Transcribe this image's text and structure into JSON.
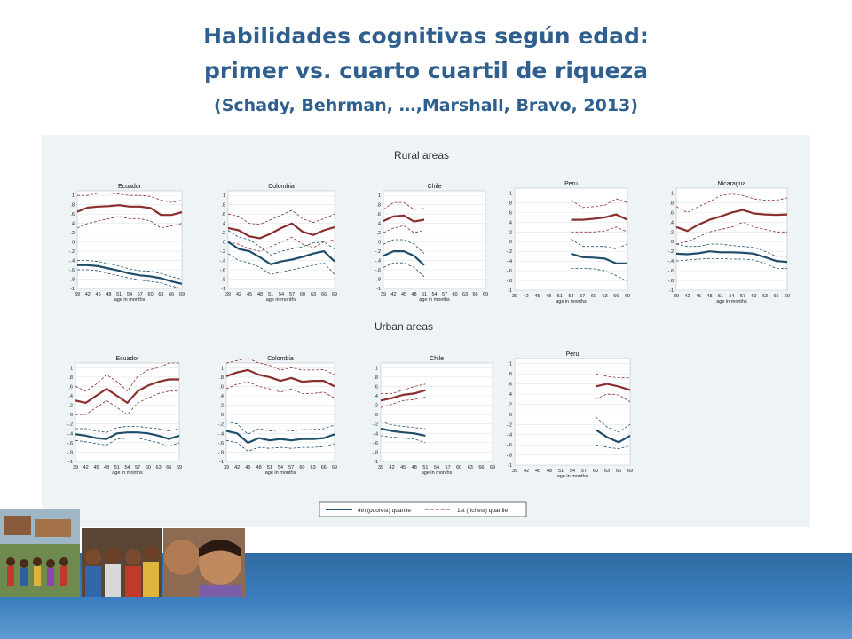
{
  "title": {
    "line1": "Habilidades cognitivas según edad:",
    "line2": "primer vs. cuarto cuartil de riqueza",
    "line3": "(Schady, Behrman, …,Marshall, Bravo, 2013)"
  },
  "colors": {
    "poorest": "#1f4e6b",
    "richest": "#8b2e2e",
    "panel_bg": "#eef3f6",
    "title": "#2e5f8e"
  },
  "photo_strip": {
    "icon": "photo-collage-icon"
  },
  "chart_data": {
    "type": "line",
    "section_titles": {
      "rural": "Rural areas",
      "urban": "Urban areas"
    },
    "xlabel": "age in months",
    "x_ticks": [
      39,
      42,
      45,
      48,
      51,
      54,
      57,
      60,
      63,
      66,
      69
    ],
    "y_ticks": [
      1,
      0.8,
      0.6,
      0.4,
      0.2,
      0,
      -0.2,
      -0.4,
      -0.6,
      -0.8,
      -1
    ],
    "y_tick_labels": [
      "1",
      ".8",
      ".6",
      ".4",
      ".2",
      "0",
      "-.2",
      "-.4",
      "-.6",
      "-.8",
      "-1"
    ],
    "x_tick_labels": [
      "39",
      "42",
      "45",
      "48",
      "51",
      "54",
      "57",
      "60",
      "63",
      "66",
      "69"
    ],
    "ylim": [
      -1,
      1.1
    ],
    "xlim": [
      39,
      69
    ],
    "legend": {
      "placement": "bottom",
      "poorest": "4th (poorest) quartile",
      "richest": "1st (richest) quartile"
    },
    "panels": [
      {
        "area": "rural",
        "country": "Ecuador",
        "x": [
          39,
          42,
          45,
          48,
          51,
          54,
          57,
          60,
          63,
          66,
          69
        ],
        "richest": [
          0.65,
          0.74,
          0.76,
          0.77,
          0.79,
          0.76,
          0.76,
          0.73,
          0.58,
          0.58,
          0.64
        ],
        "richest_ci": [
          [
            0.3,
            1.0
          ],
          [
            0.4,
            1.0
          ],
          [
            0.45,
            1.05
          ],
          [
            0.5,
            1.05
          ],
          [
            0.55,
            1.03
          ],
          [
            0.5,
            1.0
          ],
          [
            0.5,
            1.0
          ],
          [
            0.45,
            0.98
          ],
          [
            0.3,
            0.9
          ],
          [
            0.35,
            0.85
          ],
          [
            0.4,
            0.9
          ]
        ],
        "poorest": [
          -0.5,
          -0.5,
          -0.52,
          -0.57,
          -0.62,
          -0.68,
          -0.72,
          -0.74,
          -0.78,
          -0.85,
          -0.9
        ],
        "poorest_ci": [
          [
            -0.6,
            -0.4
          ],
          [
            -0.6,
            -0.4
          ],
          [
            -0.62,
            -0.42
          ],
          [
            -0.68,
            -0.47
          ],
          [
            -0.73,
            -0.52
          ],
          [
            -0.78,
            -0.58
          ],
          [
            -0.82,
            -0.62
          ],
          [
            -0.85,
            -0.63
          ],
          [
            -0.88,
            -0.68
          ],
          [
            -0.95,
            -0.75
          ],
          [
            -1.0,
            -0.8
          ]
        ]
      },
      {
        "area": "rural",
        "country": "Colombia",
        "x": [
          39,
          42,
          45,
          48,
          51,
          54,
          57,
          60,
          63,
          66,
          69
        ],
        "richest": [
          0.3,
          0.25,
          0.12,
          0.08,
          0.18,
          0.3,
          0.4,
          0.22,
          0.15,
          0.25,
          0.32
        ],
        "richest_ci": [
          [
            0.0,
            0.6
          ],
          [
            -0.05,
            0.55
          ],
          [
            -0.15,
            0.4
          ],
          [
            -0.2,
            0.38
          ],
          [
            -0.1,
            0.48
          ],
          [
            0.0,
            0.58
          ],
          [
            0.1,
            0.68
          ],
          [
            -0.05,
            0.5
          ],
          [
            -0.12,
            0.42
          ],
          [
            0.0,
            0.5
          ],
          [
            0.05,
            0.6
          ]
        ],
        "poorest": [
          0.0,
          -0.15,
          -0.2,
          -0.33,
          -0.48,
          -0.42,
          -0.38,
          -0.32,
          -0.25,
          -0.2,
          -0.42
        ],
        "poorest_ci": [
          [
            -0.25,
            0.25
          ],
          [
            -0.4,
            0.1
          ],
          [
            -0.45,
            0.05
          ],
          [
            -0.55,
            -0.1
          ],
          [
            -0.7,
            -0.28
          ],
          [
            -0.65,
            -0.2
          ],
          [
            -0.6,
            -0.15
          ],
          [
            -0.55,
            -0.1
          ],
          [
            -0.5,
            -0.02
          ],
          [
            -0.45,
            0.0
          ],
          [
            -0.7,
            -0.15
          ]
        ]
      },
      {
        "area": "rural",
        "country": "Chile",
        "x": [
          39,
          42,
          45,
          48,
          51
        ],
        "richest": [
          0.45,
          0.55,
          0.57,
          0.44,
          0.48
        ],
        "richest_ci": [
          [
            0.2,
            0.7
          ],
          [
            0.3,
            0.85
          ],
          [
            0.35,
            0.85
          ],
          [
            0.2,
            0.7
          ],
          [
            0.25,
            0.72
          ]
        ],
        "poorest": [
          -0.3,
          -0.2,
          -0.2,
          -0.3,
          -0.5
        ],
        "poorest_ci": [
          [
            -0.55,
            -0.05
          ],
          [
            -0.45,
            0.05
          ],
          [
            -0.45,
            0.05
          ],
          [
            -0.55,
            -0.05
          ],
          [
            -0.75,
            -0.25
          ]
        ]
      },
      {
        "area": "rural",
        "country": "Peru",
        "x": [
          54,
          57,
          60,
          63,
          66,
          69
        ],
        "richest": [
          0.45,
          0.45,
          0.47,
          0.5,
          0.56,
          0.45
        ],
        "richest_ci": [
          [
            0.2,
            0.85
          ],
          [
            0.2,
            0.7
          ],
          [
            0.2,
            0.72
          ],
          [
            0.22,
            0.75
          ],
          [
            0.3,
            0.88
          ],
          [
            0.2,
            0.8
          ]
        ],
        "poorest": [
          -0.25,
          -0.32,
          -0.33,
          -0.35,
          -0.45,
          -0.45
        ],
        "poorest_ci": [
          [
            0.05,
            -0.55
          ],
          [
            -0.1,
            -0.55
          ],
          [
            -0.1,
            -0.56
          ],
          [
            -0.1,
            -0.6
          ],
          [
            -0.15,
            -0.7
          ],
          [
            -0.05,
            -0.82
          ]
        ]
      },
      {
        "area": "rural",
        "country": "Nicaragua",
        "x": [
          39,
          42,
          45,
          48,
          51,
          54,
          57,
          60,
          63,
          66,
          69
        ],
        "richest": [
          0.3,
          0.22,
          0.35,
          0.45,
          0.52,
          0.6,
          0.65,
          0.58,
          0.56,
          0.55,
          0.56
        ],
        "richest_ci": [
          [
            -0.05,
            0.72
          ],
          [
            0.0,
            0.6
          ],
          [
            0.1,
            0.72
          ],
          [
            0.2,
            0.82
          ],
          [
            0.25,
            0.95
          ],
          [
            0.3,
            0.98
          ],
          [
            0.4,
            0.95
          ],
          [
            0.3,
            0.88
          ],
          [
            0.25,
            0.85
          ],
          [
            0.2,
            0.85
          ],
          [
            0.2,
            0.9
          ]
        ],
        "poorest": [
          -0.25,
          -0.26,
          -0.24,
          -0.2,
          -0.22,
          -0.22,
          -0.23,
          -0.25,
          -0.32,
          -0.4,
          -0.42
        ],
        "poorest_ci": [
          [
            -0.05,
            -0.4
          ],
          [
            -0.1,
            -0.38
          ],
          [
            -0.1,
            -0.36
          ],
          [
            -0.05,
            -0.35
          ],
          [
            -0.05,
            -0.35
          ],
          [
            -0.08,
            -0.36
          ],
          [
            -0.1,
            -0.36
          ],
          [
            -0.12,
            -0.38
          ],
          [
            -0.2,
            -0.45
          ],
          [
            -0.3,
            -0.55
          ],
          [
            -0.3,
            -0.55
          ]
        ]
      },
      {
        "area": "urban",
        "country": "Ecuador",
        "x": [
          39,
          42,
          45,
          48,
          51,
          54,
          57,
          60,
          63,
          66,
          69
        ],
        "richest": [
          0.3,
          0.25,
          0.4,
          0.55,
          0.4,
          0.25,
          0.5,
          0.62,
          0.7,
          0.75,
          0.75
        ],
        "richest_ci": [
          [
            0.0,
            0.6
          ],
          [
            0.0,
            0.5
          ],
          [
            0.15,
            0.65
          ],
          [
            0.3,
            0.85
          ],
          [
            0.15,
            0.7
          ],
          [
            0.0,
            0.5
          ],
          [
            0.25,
            0.82
          ],
          [
            0.35,
            0.95
          ],
          [
            0.45,
            1.0
          ],
          [
            0.5,
            1.1
          ],
          [
            0.5,
            1.1
          ]
        ],
        "poorest": [
          -0.42,
          -0.45,
          -0.5,
          -0.52,
          -0.4,
          -0.38,
          -0.38,
          -0.4,
          -0.45,
          -0.52,
          -0.45
        ],
        "poorest_ci": [
          [
            -0.3,
            -0.55
          ],
          [
            -0.3,
            -0.58
          ],
          [
            -0.35,
            -0.62
          ],
          [
            -0.38,
            -0.65
          ],
          [
            -0.28,
            -0.52
          ],
          [
            -0.25,
            -0.5
          ],
          [
            -0.25,
            -0.5
          ],
          [
            -0.28,
            -0.55
          ],
          [
            -0.3,
            -0.6
          ],
          [
            -0.35,
            -0.68
          ],
          [
            -0.3,
            -0.6
          ]
        ]
      },
      {
        "area": "urban",
        "country": "Colombia",
        "x": [
          39,
          42,
          45,
          48,
          51,
          54,
          57,
          60,
          63,
          66,
          69
        ],
        "richest": [
          0.82,
          0.9,
          0.95,
          0.85,
          0.8,
          0.72,
          0.78,
          0.7,
          0.72,
          0.72,
          0.6
        ],
        "richest_ci": [
          [
            0.55,
            1.1
          ],
          [
            0.65,
            1.15
          ],
          [
            0.7,
            1.2
          ],
          [
            0.6,
            1.1
          ],
          [
            0.55,
            1.05
          ],
          [
            0.48,
            0.95
          ],
          [
            0.55,
            1.0
          ],
          [
            0.45,
            0.95
          ],
          [
            0.45,
            0.95
          ],
          [
            0.48,
            0.96
          ],
          [
            0.35,
            0.85
          ]
        ],
        "poorest": [
          -0.35,
          -0.4,
          -0.6,
          -0.5,
          -0.55,
          -0.52,
          -0.55,
          -0.52,
          -0.52,
          -0.5,
          -0.42
        ],
        "poorest_ci": [
          [
            -0.15,
            -0.55
          ],
          [
            -0.2,
            -0.6
          ],
          [
            -0.42,
            -0.78
          ],
          [
            -0.3,
            -0.7
          ],
          [
            -0.35,
            -0.72
          ],
          [
            -0.32,
            -0.7
          ],
          [
            -0.35,
            -0.72
          ],
          [
            -0.32,
            -0.7
          ],
          [
            -0.32,
            -0.7
          ],
          [
            -0.3,
            -0.68
          ],
          [
            -0.22,
            -0.62
          ]
        ]
      },
      {
        "area": "urban",
        "country": "Chile",
        "x": [
          39,
          42,
          45,
          48,
          51
        ],
        "richest": [
          0.3,
          0.35,
          0.42,
          0.45,
          0.52
        ],
        "richest_ci": [
          [
            0.45,
            0.15
          ],
          [
            0.45,
            0.22
          ],
          [
            0.52,
            0.3
          ],
          [
            0.6,
            0.32
          ],
          [
            0.65,
            0.38
          ]
        ],
        "poorest": [
          -0.3,
          -0.35,
          -0.38,
          -0.4,
          -0.45
        ],
        "poorest_ci": [
          [
            -0.15,
            -0.45
          ],
          [
            -0.22,
            -0.48
          ],
          [
            -0.25,
            -0.5
          ],
          [
            -0.28,
            -0.52
          ],
          [
            -0.3,
            -0.6
          ]
        ]
      },
      {
        "area": "urban",
        "country": "Peru",
        "x": [
          60,
          63,
          66,
          69
        ],
        "richest": [
          0.55,
          0.6,
          0.55,
          0.48
        ],
        "richest_ci": [
          [
            0.8,
            0.3
          ],
          [
            0.75,
            0.4
          ],
          [
            0.72,
            0.38
          ],
          [
            0.72,
            0.25
          ]
        ],
        "poorest": [
          -0.3,
          -0.45,
          -0.55,
          -0.42
        ],
        "poorest_ci": [
          [
            -0.05,
            -0.6
          ],
          [
            -0.25,
            -0.65
          ],
          [
            -0.35,
            -0.68
          ],
          [
            -0.2,
            -0.62
          ]
        ]
      }
    ]
  }
}
